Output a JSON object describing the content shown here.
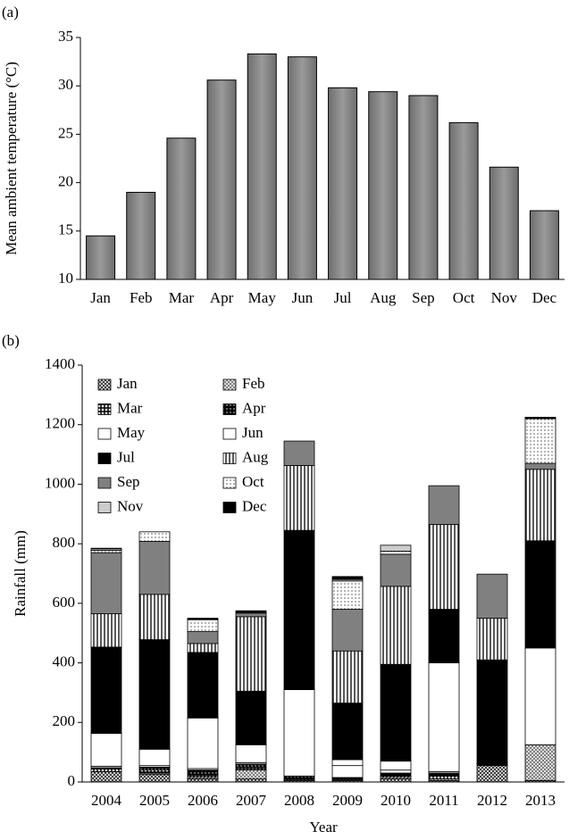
{
  "chart_data": [
    {
      "type": "bar",
      "panel": "(a)",
      "ylabel": "Mean ambient temperature (°C)",
      "categories": [
        "Jan",
        "Feb",
        "Mar",
        "Apr",
        "May",
        "Jun",
        "Jul",
        "Aug",
        "Sep",
        "Oct",
        "Nov",
        "Dec"
      ],
      "values": [
        14.5,
        19,
        24.6,
        30.6,
        33.3,
        33.0,
        29.8,
        29.4,
        29.0,
        26.2,
        21.6,
        17.1
      ],
      "color": "#6e6e6e",
      "ylim": [
        10,
        35
      ],
      "yticks": [
        10,
        15,
        20,
        25,
        30,
        35
      ]
    },
    {
      "type": "stacked-bar",
      "panel": "(b)",
      "ylabel": "Rainfall (mm)",
      "xlabel": "Year",
      "categories": [
        "2004",
        "2005",
        "2006",
        "2007",
        "2008",
        "2009",
        "2010",
        "2011",
        "2012",
        "2013"
      ],
      "ylim": [
        0,
        1400
      ],
      "yticks": [
        0,
        200,
        400,
        600,
        800,
        1000,
        1200,
        1400
      ],
      "legend": "top-left",
      "series": [
        {
          "name": "Jan",
          "color": "#333333",
          "pattern": "crosshatch",
          "values": [
            35,
            25,
            10,
            10,
            5,
            5,
            10,
            5,
            55,
            5
          ]
        },
        {
          "name": "Feb",
          "color": "#777777",
          "pattern": "crosshatch",
          "values": [
            0,
            5,
            5,
            30,
            0,
            3,
            5,
            5,
            0,
            120
          ]
        },
        {
          "name": "Mar",
          "color": "#000000",
          "pattern": "grid",
          "values": [
            8,
            10,
            10,
            10,
            5,
            2,
            5,
            10,
            5,
            0
          ]
        },
        {
          "name": "Apr",
          "color": "#000000",
          "pattern": "dots-dark",
          "values": [
            5,
            10,
            15,
            10,
            10,
            5,
            10,
            10,
            5,
            0
          ]
        },
        {
          "name": "May",
          "color": "#ffffff",
          "values": [
            5,
            5,
            5,
            5,
            0,
            40,
            10,
            5,
            0,
            0
          ]
        },
        {
          "name": "Jun",
          "color": "#ffffff",
          "values": [
            110,
            55,
            170,
            60,
            290,
            20,
            30,
            365,
            0,
            325
          ]
        },
        {
          "name": "Jul",
          "color": "#000000",
          "values": [
            290,
            368,
            220,
            180,
            535,
            190,
            325,
            180,
            345,
            360
          ]
        },
        {
          "name": "Aug",
          "color": "#000000",
          "pattern": "vstripes",
          "values": [
            112,
            152,
            30,
            250,
            218,
            175,
            262,
            285,
            140,
            240
          ]
        },
        {
          "name": "Sep",
          "color": "#808080",
          "values": [
            205,
            178,
            40,
            12,
            82,
            140,
            108,
            130,
            148,
            20
          ]
        },
        {
          "name": "Oct",
          "color": "#000000",
          "pattern": "dots",
          "values": [
            8,
            32,
            40,
            3,
            0,
            95,
            10,
            0,
            0,
            150
          ]
        },
        {
          "name": "Nov",
          "color": "#cccccc",
          "values": [
            5,
            0,
            0,
            0,
            0,
            5,
            20,
            0,
            0,
            0
          ]
        },
        {
          "name": "Dec",
          "color": "#000000",
          "values": [
            2,
            0,
            5,
            5,
            0,
            10,
            0,
            0,
            0,
            5
          ]
        }
      ]
    }
  ]
}
